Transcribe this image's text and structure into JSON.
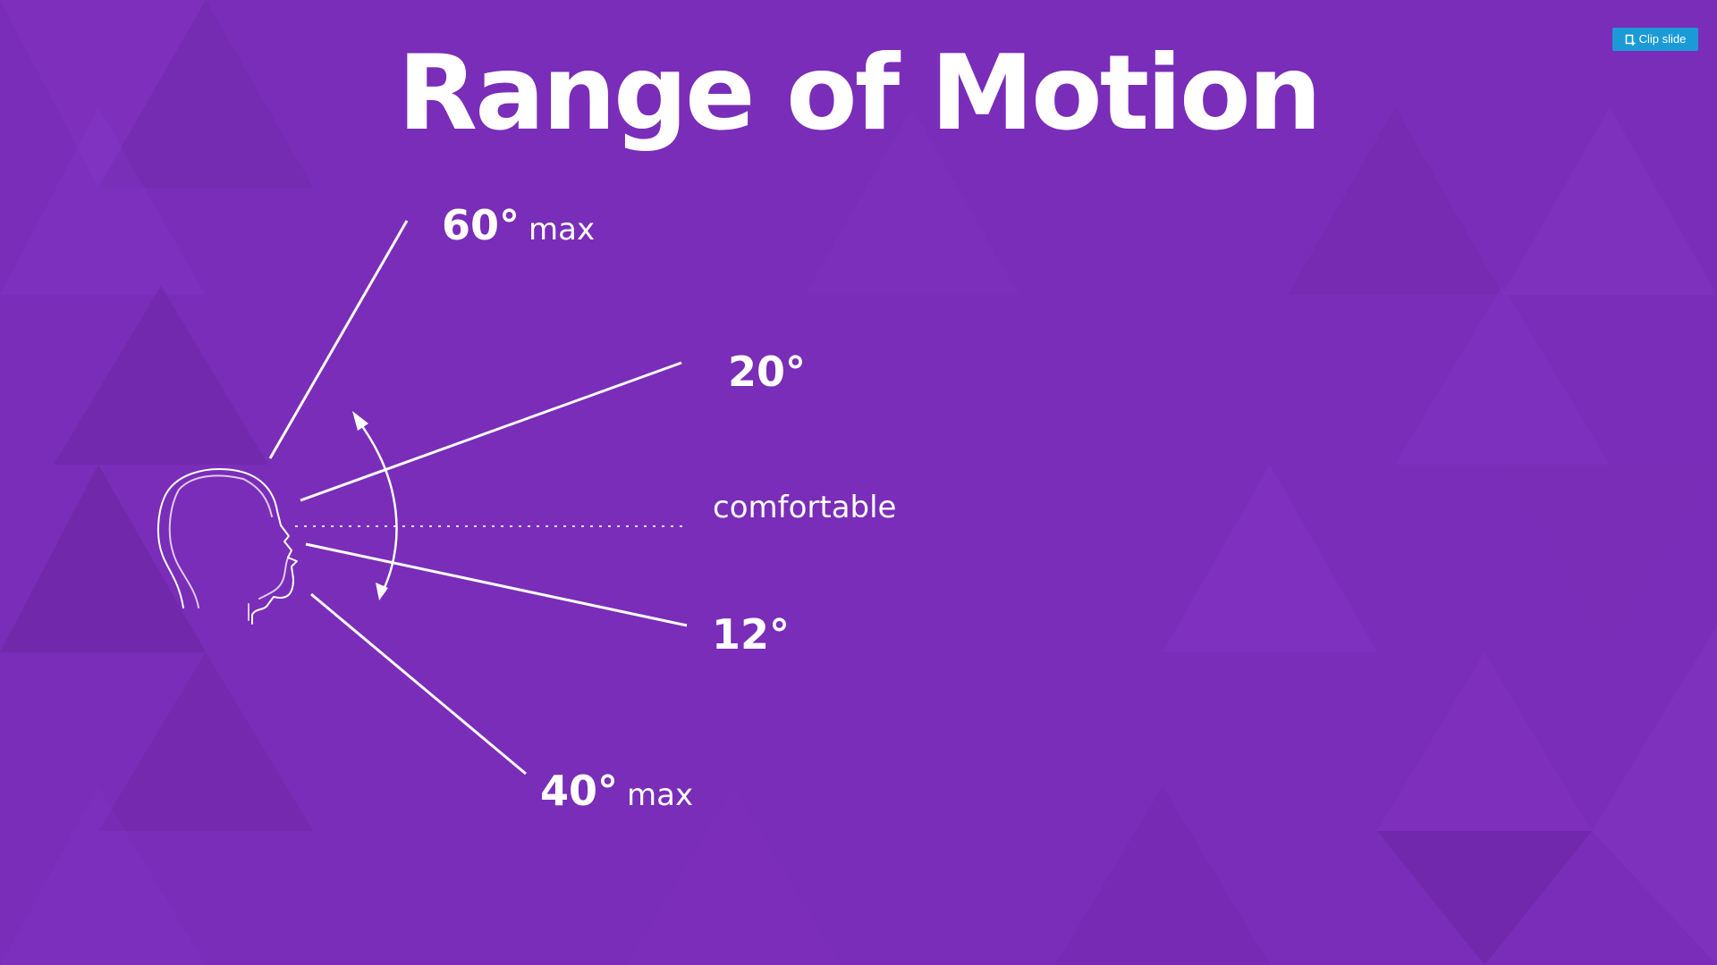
{
  "title": "Range of Motion",
  "clip_button": {
    "label": "Clip slide",
    "icon": "clip-icon",
    "color": "#1b9ad6"
  },
  "background_color": "#7a2db8",
  "diagram": {
    "labels": {
      "up_max": {
        "value": "60°",
        "suffix": "max"
      },
      "up_comfort": {
        "value": "20°"
      },
      "comfortable": "comfortable",
      "down_comfort": {
        "value": "12°"
      },
      "down_max": {
        "value": "40°",
        "suffix": "max"
      }
    },
    "icons": [
      "head-profile-icon",
      "double-arrow-icon"
    ]
  }
}
